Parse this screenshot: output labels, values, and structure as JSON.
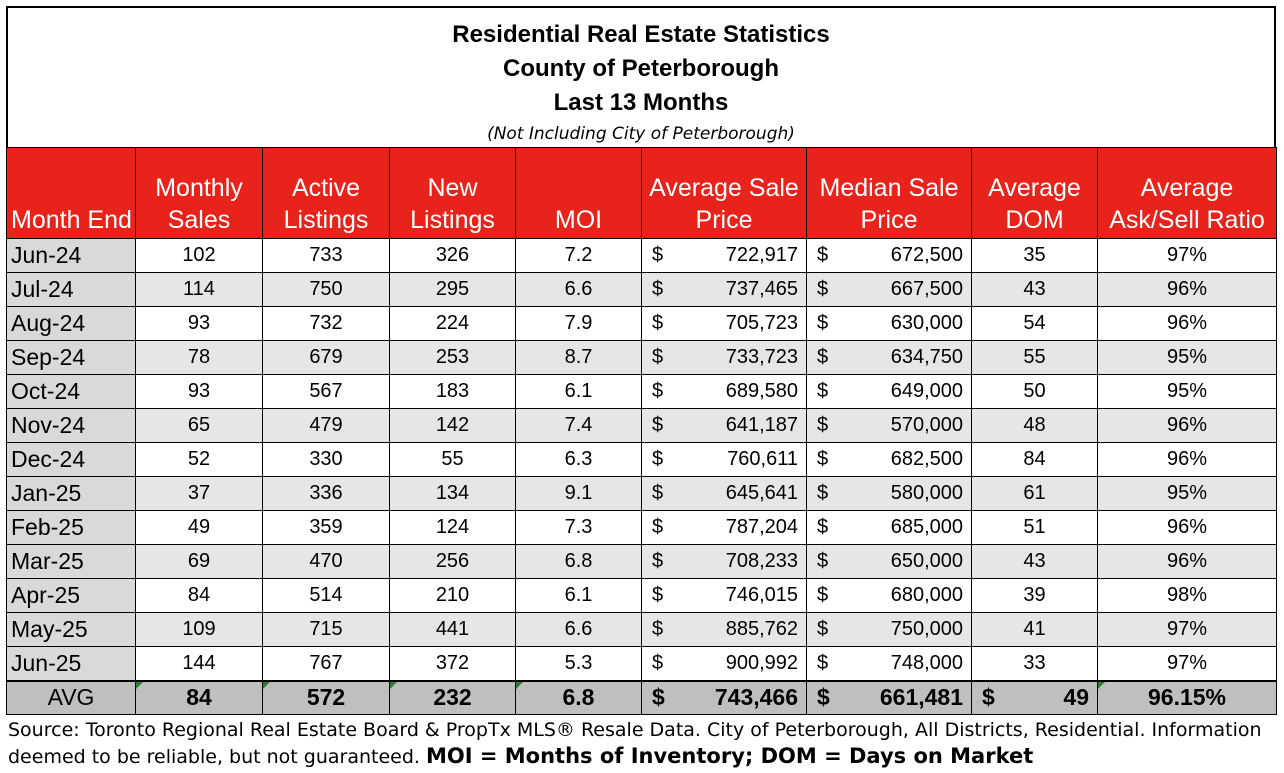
{
  "title": {
    "line1": "Residential Real Estate Statistics",
    "line2": "County of Peterborough",
    "line3": "Last 13 Months",
    "note": "(Not Including City of Peterborough)"
  },
  "headers": {
    "month": "Month End",
    "sales_1": "Monthly",
    "sales_2": "Sales",
    "active_1": "Active",
    "active_2": "Listings",
    "new_1": "New",
    "new_2": "Listings",
    "moi": "MOI",
    "avgsale_1": "Average Sale",
    "avgsale_2": "Price",
    "median_1": "Median Sale",
    "median_2": "Price",
    "dom_1": "Average",
    "dom_2": "DOM",
    "ratio_1": "Average",
    "ratio_2": "Ask/Sell Ratio"
  },
  "currency_symbol": "$",
  "rows": [
    {
      "month": "Jun-24",
      "sales": "102",
      "active": "733",
      "new": "326",
      "moi": "7.2",
      "avg_price": "722,917",
      "median_price": "672,500",
      "dom": "35",
      "ratio": "97%"
    },
    {
      "month": "Jul-24",
      "sales": "114",
      "active": "750",
      "new": "295",
      "moi": "6.6",
      "avg_price": "737,465",
      "median_price": "667,500",
      "dom": "43",
      "ratio": "96%"
    },
    {
      "month": "Aug-24",
      "sales": "93",
      "active": "732",
      "new": "224",
      "moi": "7.9",
      "avg_price": "705,723",
      "median_price": "630,000",
      "dom": "54",
      "ratio": "96%"
    },
    {
      "month": "Sep-24",
      "sales": "78",
      "active": "679",
      "new": "253",
      "moi": "8.7",
      "avg_price": "733,723",
      "median_price": "634,750",
      "dom": "55",
      "ratio": "95%"
    },
    {
      "month": "Oct-24",
      "sales": "93",
      "active": "567",
      "new": "183",
      "moi": "6.1",
      "avg_price": "689,580",
      "median_price": "649,000",
      "dom": "50",
      "ratio": "95%"
    },
    {
      "month": "Nov-24",
      "sales": "65",
      "active": "479",
      "new": "142",
      "moi": "7.4",
      "avg_price": "641,187",
      "median_price": "570,000",
      "dom": "48",
      "ratio": "96%"
    },
    {
      "month": "Dec-24",
      "sales": "52",
      "active": "330",
      "new": "55",
      "moi": "6.3",
      "avg_price": "760,611",
      "median_price": "682,500",
      "dom": "84",
      "ratio": "96%"
    },
    {
      "month": "Jan-25",
      "sales": "37",
      "active": "336",
      "new": "134",
      "moi": "9.1",
      "avg_price": "645,641",
      "median_price": "580,000",
      "dom": "61",
      "ratio": "95%"
    },
    {
      "month": "Feb-25",
      "sales": "49",
      "active": "359",
      "new": "124",
      "moi": "7.3",
      "avg_price": "787,204",
      "median_price": "685,000",
      "dom": "51",
      "ratio": "96%"
    },
    {
      "month": "Mar-25",
      "sales": "69",
      "active": "470",
      "new": "256",
      "moi": "6.8",
      "avg_price": "708,233",
      "median_price": "650,000",
      "dom": "43",
      "ratio": "96%"
    },
    {
      "month": "Apr-25",
      "sales": "84",
      "active": "514",
      "new": "210",
      "moi": "6.1",
      "avg_price": "746,015",
      "median_price": "680,000",
      "dom": "39",
      "ratio": "98%"
    },
    {
      "month": "May-25",
      "sales": "109",
      "active": "715",
      "new": "441",
      "moi": "6.6",
      "avg_price": "885,762",
      "median_price": "750,000",
      "dom": "41",
      "ratio": "97%"
    },
    {
      "month": "Jun-25",
      "sales": "144",
      "active": "767",
      "new": "372",
      "moi": "5.3",
      "avg_price": "900,992",
      "median_price": "748,000",
      "dom": "33",
      "ratio": "97%"
    }
  ],
  "average": {
    "label": "AVG",
    "sales": "84",
    "active": "572",
    "new": "232",
    "moi": "6.8",
    "avg_price": "743,466",
    "median_price": "661,481",
    "dom": "49",
    "ratio": "96.15%"
  },
  "footer": {
    "source": "Source: Toronto Regional Real Estate Board & PropTx MLS® Resale Data. City of Peterborough, All Districts, Residential.  Information deemed to be reliable, but not guaranteed.",
    "legend": "MOI = Months of Inventory; DOM = Days on Market"
  },
  "colors": {
    "header_red": "#e8231b",
    "row_shade": "#e6e6e6",
    "month_col": "#d9d9d9",
    "avg_row": "#bfbfbf"
  }
}
